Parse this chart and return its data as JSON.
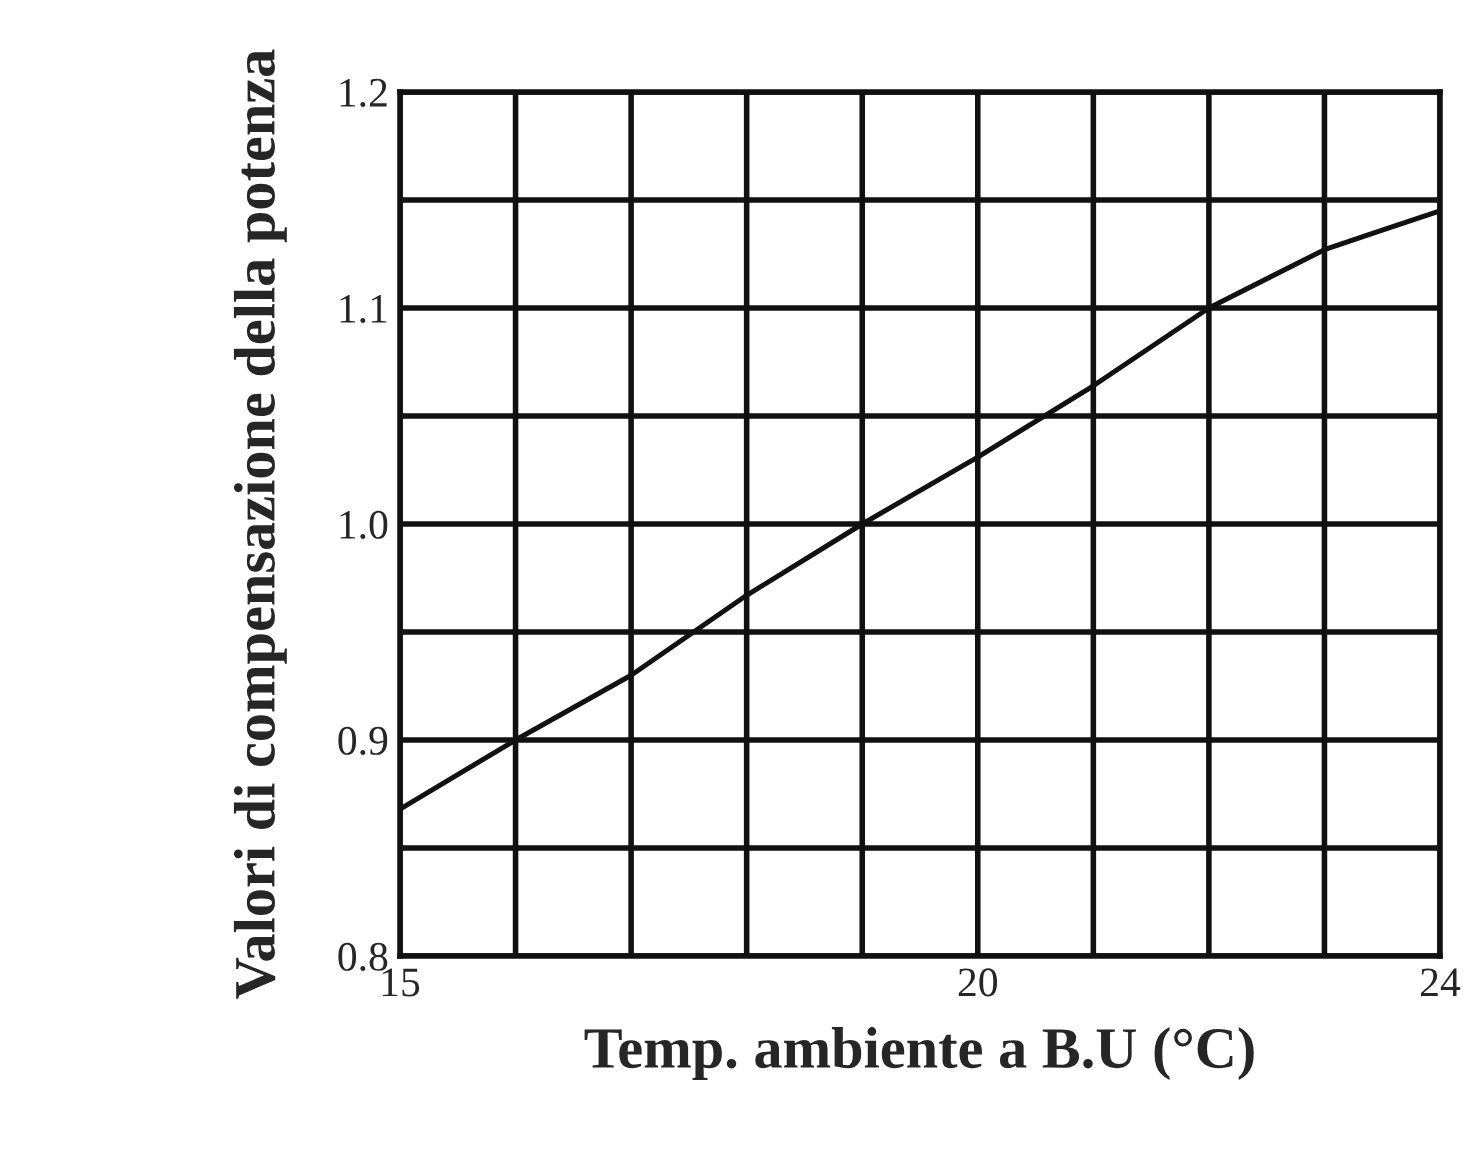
{
  "chart_data": {
    "type": "line",
    "xlabel": "Temp. ambiente a B.U (°C)",
    "ylabel": "Valori di compensazione della potenza",
    "x": [
      15,
      16,
      17,
      18,
      19,
      20,
      21,
      22,
      23,
      23.5,
      24
    ],
    "series": [
      {
        "color": "#111111",
        "values": [
          0.868,
          0.9,
          0.93,
          0.967,
          1.0,
          1.031,
          1.064,
          1.1,
          1.127,
          1.136,
          1.145
        ]
      }
    ],
    "xlim": [
      15,
      24
    ],
    "ylim": [
      0.8,
      1.2
    ],
    "xticks": [
      15,
      {
        "value": 16,
        "label": null
      },
      {
        "value": 17,
        "label": null
      },
      {
        "value": 18,
        "label": null
      },
      {
        "value": 19,
        "label": null
      },
      20,
      {
        "value": 21,
        "label": null
      },
      {
        "value": 22,
        "label": null
      },
      {
        "value": 23,
        "label": null
      },
      24
    ],
    "yticks": [
      {
        "value": 0.8,
        "label": "0.8"
      },
      {
        "value": 0.85,
        "label": null
      },
      {
        "value": 0.9,
        "label": "0.9"
      },
      {
        "value": 0.95,
        "label": null
      },
      {
        "value": 1.0,
        "label": "1.0"
      },
      {
        "value": 1.05,
        "label": null
      },
      {
        "value": 1.1,
        "label": "1.1"
      },
      {
        "value": 1.15,
        "label": null
      },
      {
        "value": 1.2,
        "label": "1.2"
      }
    ],
    "grid": true,
    "line_style": "solid",
    "marker": "none"
  }
}
